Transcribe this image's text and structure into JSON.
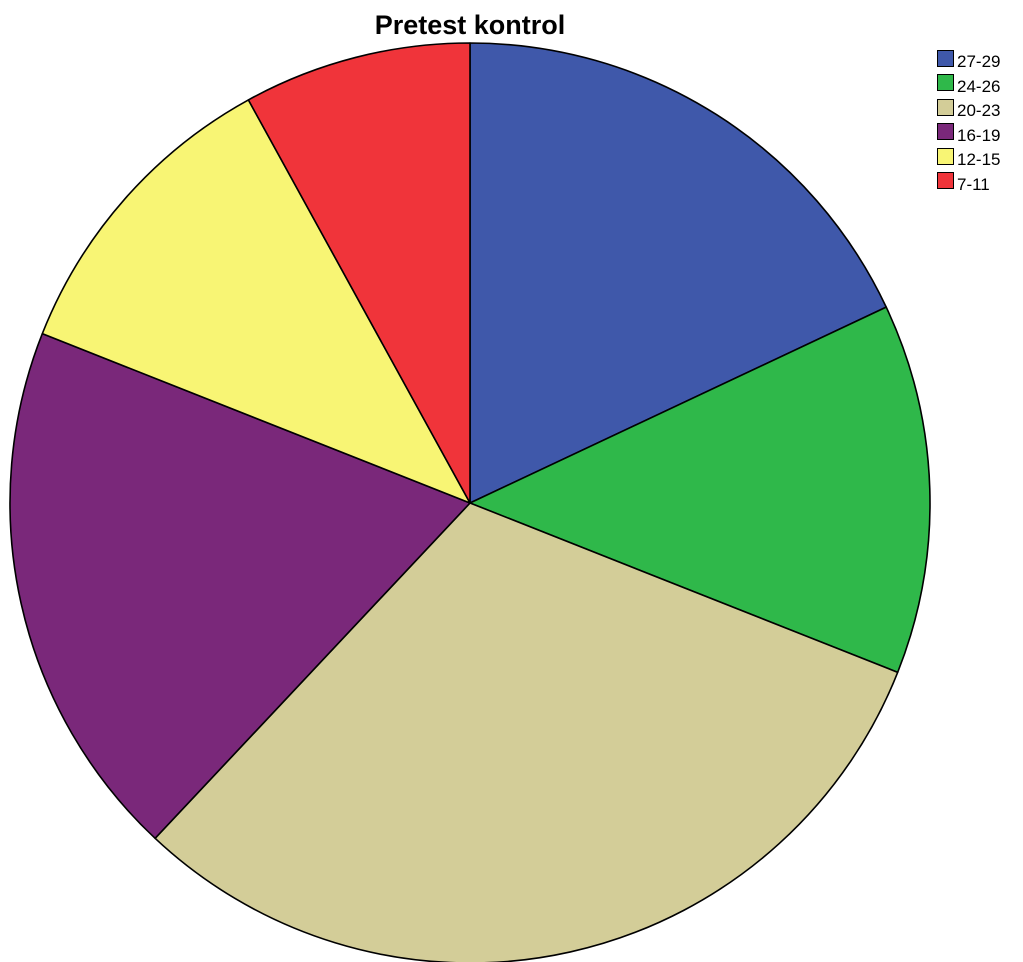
{
  "chart_data": {
    "type": "pie",
    "title": "Pretest kontrol",
    "legend_position": "top-right",
    "start_angle": "12 o'clock, clockwise",
    "slices": [
      {
        "label": "27-29",
        "percent": 18,
        "color": "#3F58AA"
      },
      {
        "label": "24-26",
        "percent": 13,
        "color": "#2FB84A"
      },
      {
        "label": "20-23",
        "percent": 31,
        "color": "#D3CD98"
      },
      {
        "label": "16-19",
        "percent": 19,
        "color": "#7A287A"
      },
      {
        "label": "12-15",
        "percent": 11,
        "color": "#F8F574"
      },
      {
        "label": "7-11",
        "percent": 8,
        "color": "#F0343A"
      }
    ]
  }
}
